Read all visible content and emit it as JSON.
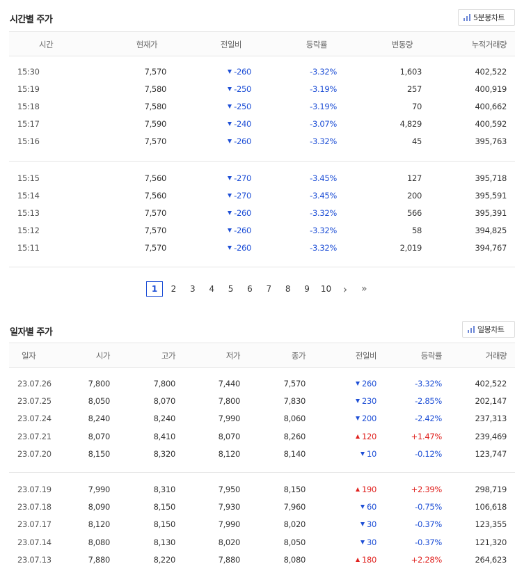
{
  "intraday": {
    "title": "시간별 주가",
    "chart_button": "5분봉차트",
    "headers": [
      "시간",
      "현재가",
      "전일비",
      "등락률",
      "변동량",
      "누적거래량"
    ],
    "groups": [
      [
        {
          "time": "15:30",
          "price": "7,570",
          "dir": "down",
          "change": "-260",
          "rate": "-3.32%",
          "vol": "1,603",
          "acc": "402,522"
        },
        {
          "time": "15:19",
          "price": "7,580",
          "dir": "down",
          "change": "-250",
          "rate": "-3.19%",
          "vol": "257",
          "acc": "400,919"
        },
        {
          "time": "15:18",
          "price": "7,580",
          "dir": "down",
          "change": "-250",
          "rate": "-3.19%",
          "vol": "70",
          "acc": "400,662"
        },
        {
          "time": "15:17",
          "price": "7,590",
          "dir": "down",
          "change": "-240",
          "rate": "-3.07%",
          "vol": "4,829",
          "acc": "400,592"
        },
        {
          "time": "15:16",
          "price": "7,570",
          "dir": "down",
          "change": "-260",
          "rate": "-3.32%",
          "vol": "45",
          "acc": "395,763"
        }
      ],
      [
        {
          "time": "15:15",
          "price": "7,560",
          "dir": "down",
          "change": "-270",
          "rate": "-3.45%",
          "vol": "127",
          "acc": "395,718"
        },
        {
          "time": "15:14",
          "price": "7,560",
          "dir": "down",
          "change": "-270",
          "rate": "-3.45%",
          "vol": "200",
          "acc": "395,591"
        },
        {
          "time": "15:13",
          "price": "7,570",
          "dir": "down",
          "change": "-260",
          "rate": "-3.32%",
          "vol": "566",
          "acc": "395,391"
        },
        {
          "time": "15:12",
          "price": "7,570",
          "dir": "down",
          "change": "-260",
          "rate": "-3.32%",
          "vol": "58",
          "acc": "394,825"
        },
        {
          "time": "15:11",
          "price": "7,570",
          "dir": "down",
          "change": "-260",
          "rate": "-3.32%",
          "vol": "2,019",
          "acc": "394,767"
        }
      ]
    ],
    "pagination": {
      "pages": [
        "1",
        "2",
        "3",
        "4",
        "5",
        "6",
        "7",
        "8",
        "9",
        "10"
      ],
      "active": "1",
      "next": "›",
      "last": "»"
    }
  },
  "daily": {
    "title": "일자별 주가",
    "chart_button": "일봉차트",
    "headers": [
      "일자",
      "시가",
      "고가",
      "저가",
      "종가",
      "전일비",
      "등락률",
      "거래량"
    ],
    "groups": [
      [
        {
          "date": "23.07.26",
          "open": "7,800",
          "high": "7,800",
          "low": "7,440",
          "close": "7,570",
          "dir": "down",
          "change": "260",
          "rate": "-3.32%",
          "vol": "402,522"
        },
        {
          "date": "23.07.25",
          "open": "8,050",
          "high": "8,070",
          "low": "7,800",
          "close": "7,830",
          "dir": "down",
          "change": "230",
          "rate": "-2.85%",
          "vol": "202,147"
        },
        {
          "date": "23.07.24",
          "open": "8,240",
          "high": "8,240",
          "low": "7,990",
          "close": "8,060",
          "dir": "down",
          "change": "200",
          "rate": "-2.42%",
          "vol": "237,313"
        },
        {
          "date": "23.07.21",
          "open": "8,070",
          "high": "8,410",
          "low": "8,070",
          "close": "8,260",
          "dir": "up",
          "change": "120",
          "rate": "+1.47%",
          "vol": "239,469"
        },
        {
          "date": "23.07.20",
          "open": "8,150",
          "high": "8,320",
          "low": "8,120",
          "close": "8,140",
          "dir": "down",
          "change": "10",
          "rate": "-0.12%",
          "vol": "123,747"
        }
      ],
      [
        {
          "date": "23.07.19",
          "open": "7,990",
          "high": "8,310",
          "low": "7,950",
          "close": "8,150",
          "dir": "up",
          "change": "190",
          "rate": "+2.39%",
          "vol": "298,719"
        },
        {
          "date": "23.07.18",
          "open": "8,090",
          "high": "8,150",
          "low": "7,930",
          "close": "7,960",
          "dir": "down",
          "change": "60",
          "rate": "-0.75%",
          "vol": "106,618"
        },
        {
          "date": "23.07.17",
          "open": "8,120",
          "high": "8,150",
          "low": "7,990",
          "close": "8,020",
          "dir": "down",
          "change": "30",
          "rate": "-0.37%",
          "vol": "123,355"
        },
        {
          "date": "23.07.14",
          "open": "8,080",
          "high": "8,130",
          "low": "8,020",
          "close": "8,050",
          "dir": "down",
          "change": "30",
          "rate": "-0.37%",
          "vol": "121,320"
        },
        {
          "date": "23.07.13",
          "open": "7,880",
          "high": "8,220",
          "low": "7,880",
          "close": "8,080",
          "dir": "up",
          "change": "180",
          "rate": "+2.28%",
          "vol": "264,623"
        }
      ]
    ]
  },
  "colors": {
    "down": "#1e4fd6",
    "up": "#e0221f",
    "chart_icon": "#6b86d6"
  },
  "icons": {
    "chart_button_icon": "bar-chart-icon",
    "down_marker": "triangle-down-icon",
    "up_marker": "triangle-up-icon"
  }
}
